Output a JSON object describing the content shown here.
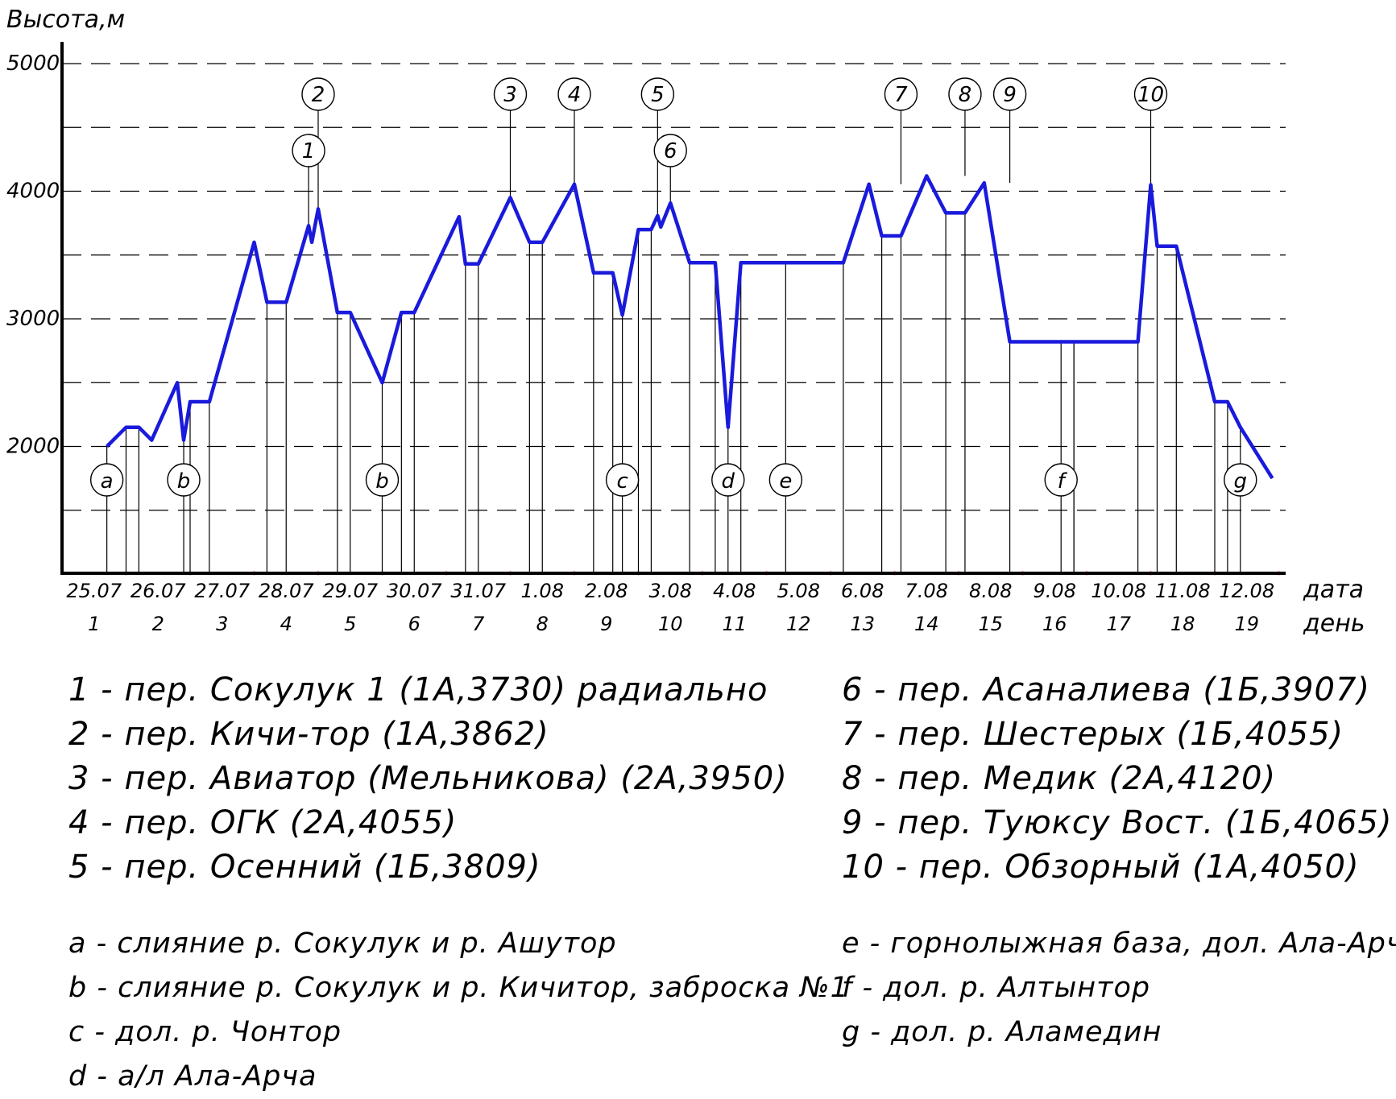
{
  "chart_data": {
    "type": "line",
    "ylabel": "Высота,м",
    "xlabel_date": "дата",
    "xlabel_day": "день",
    "ylim": [
      1000,
      5000
    ],
    "y_ticks": [
      {
        "value": 2000,
        "label": "2000"
      },
      {
        "value": 3000,
        "label": "3000"
      },
      {
        "value": 4000,
        "label": "4000"
      },
      {
        "value": 5000,
        "label": "5000"
      }
    ],
    "grid_values": [
      1500,
      2000,
      2500,
      3000,
      3500,
      4000,
      4500,
      5000
    ],
    "grid": true,
    "date_labels": [
      "25.07",
      "26.07",
      "27.07",
      "28.07",
      "29.07",
      "30.07",
      "31.07",
      "1.08",
      "2.08",
      "3.08",
      "4.08",
      "5.08",
      "6.08",
      "7.08",
      "8.08",
      "9.08",
      "10.08",
      "11.08",
      "12.08"
    ],
    "day_labels": [
      "1",
      "2",
      "3",
      "4",
      "5",
      "6",
      "7",
      "8",
      "9",
      "10",
      "11",
      "12",
      "13",
      "14",
      "15",
      "16",
      "17",
      "18",
      "19"
    ],
    "line_color": "#1a1adc",
    "series": [
      {
        "x": [
          0.7,
          1.0,
          1.2,
          1.4,
          1.8,
          1.9,
          2.0,
          2.3,
          3.0,
          3.2,
          3.5,
          3.85,
          3.9,
          4.0,
          4.3,
          4.5,
          5.0,
          5.3,
          5.5,
          6.2,
          6.3,
          6.5,
          7.0,
          7.3,
          7.5,
          8.0,
          8.3,
          8.6,
          8.75,
          9.0,
          9.2,
          9.3,
          9.35,
          9.5,
          9.8,
          10.2,
          10.4,
          10.6,
          12.2,
          12.6,
          12.8,
          13.1,
          13.5,
          13.8,
          14.1,
          14.4,
          14.8,
          15.8,
          16.8,
          17.0,
          17.1,
          17.4,
          18.0,
          18.2,
          18.4,
          18.9
        ],
        "y": [
          2000,
          2150,
          2150,
          2050,
          2500,
          2050,
          2350,
          2350,
          3600,
          3130,
          3130,
          3730,
          3600,
          3862,
          3050,
          3050,
          2500,
          3050,
          3050,
          3800,
          3430,
          3430,
          3950,
          3600,
          3600,
          4055,
          3360,
          3360,
          3030,
          3700,
          3700,
          3809,
          3720,
          3907,
          3440,
          3440,
          2150,
          3440,
          3440,
          4055,
          3650,
          3650,
          4120,
          3830,
          3830,
          4065,
          2820,
          2820,
          2820,
          4050,
          3570,
          3570,
          2350,
          2350,
          2150,
          1750
        ]
      }
    ],
    "passes": [
      {
        "id": "1",
        "label": "1",
        "x": 3.85,
        "y": 3730
      },
      {
        "id": "2",
        "label": "2",
        "x": 4.0,
        "y": 3862
      },
      {
        "id": "3",
        "label": "3",
        "x": 7.0,
        "y": 3950
      },
      {
        "id": "4",
        "label": "4",
        "x": 8.0,
        "y": 4055
      },
      {
        "id": "5",
        "label": "5",
        "x": 9.3,
        "y": 3809
      },
      {
        "id": "6",
        "label": "6",
        "x": 9.5,
        "y": 3907
      },
      {
        "id": "7",
        "label": "7",
        "x": 13.1,
        "y": 4055
      },
      {
        "id": "8",
        "label": "8",
        "x": 14.1,
        "y": 4120
      },
      {
        "id": "9",
        "label": "9",
        "x": 14.8,
        "y": 4065
      },
      {
        "id": "10",
        "label": "10",
        "x": 17.0,
        "y": 4050
      }
    ],
    "points": [
      {
        "label": "a",
        "x": 0.7,
        "y": 2000
      },
      {
        "label": "b",
        "x": 1.9,
        "y": 2050
      },
      {
        "label": "b",
        "x": 5.0,
        "y": 2500
      },
      {
        "label": "c",
        "x": 8.75,
        "y": 3030
      },
      {
        "label": "d",
        "x": 10.4,
        "y": 2150
      },
      {
        "label": "e",
        "x": 11.3,
        "y": 3440
      },
      {
        "label": "f",
        "x": 15.6,
        "y": 2820
      },
      {
        "label": "g",
        "x": 18.4,
        "y": 2150
      }
    ]
  },
  "legend": {
    "passes_left": [
      "1 - пер. Сокулук 1 (1А,3730) радиально",
      "2 - пер. Кичи-тор (1А,3862)",
      "3 - пер. Авиатор (Мельникова) (2А,3950)",
      "4 - пер. ОГК (2А,4055)",
      "5 - пер. Осенний (1Б,3809)"
    ],
    "passes_right": [
      "6 - пер. Асаналиева (1Б,3907)",
      "7 - пер. Шестерых (1Б,4055)",
      "8 - пер. Медик (2А,4120)",
      "9 - пер. Туюксу Вост. (1Б,4065)",
      "10 - пер. Обзорный (1А,4050)"
    ],
    "points_left": [
      "a - слияние р. Сокулук и р. Ашутор",
      "b - слияние р. Сокулук и р. Кичитор, заброска №1",
      "c - дол. р. Чонтор",
      "d - а/л Ала-Арча"
    ],
    "points_right": [
      "e - горнолыжная база, дол. Ала-Арча",
      "f - дол. р. Алтынтор",
      "g - дол. р. Аламедин"
    ]
  }
}
